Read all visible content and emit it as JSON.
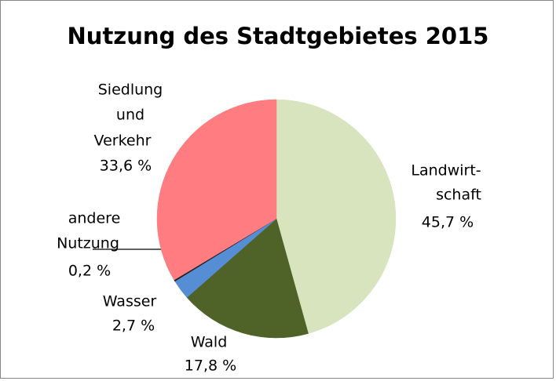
{
  "chart_data": {
    "type": "pie",
    "title": "Nutzung des Stadtgebietes 2015",
    "categories": [
      [
        "Landwirt-",
        "schaft"
      ],
      [
        "Wald"
      ],
      [
        "Wasser"
      ],
      [
        "andere",
        "Nutzung"
      ],
      [
        "Siedlung",
        "und",
        "Verkehr"
      ]
    ],
    "values": [
      45.7,
      17.8,
      2.7,
      0.2,
      33.6
    ],
    "value_labels": [
      "45,7 %",
      "17,8 %",
      "2,7 %",
      "0,2 %",
      "33,6 %"
    ],
    "colors": [
      "#d7e4bd",
      "#4f6228",
      "#558ed5",
      "#1f1f1f",
      "#ff7c80"
    ]
  }
}
